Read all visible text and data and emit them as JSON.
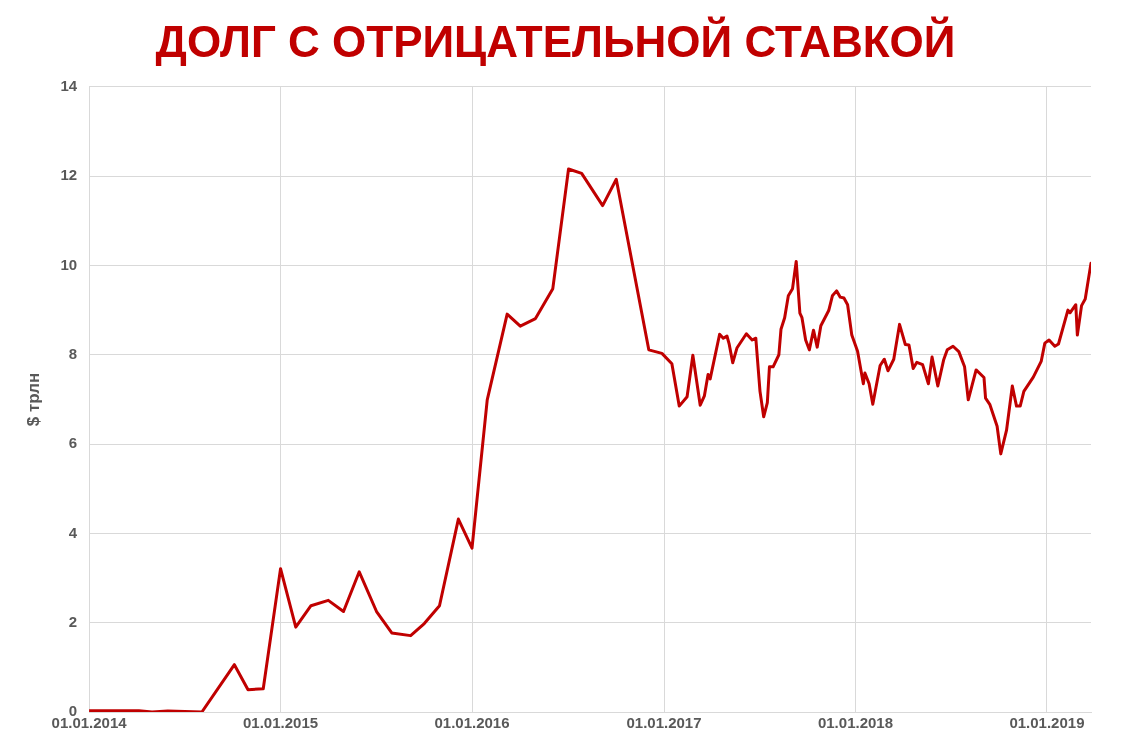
{
  "chart_data": {
    "type": "line",
    "title": "ДОЛГ С ОТРИЦАТЕЛЬНОЙ СТАВКОЙ",
    "ylabel": "$ трлн",
    "x": [
      "2014-01-01",
      "2014-04-06",
      "2014-05-01",
      "2014-05-31",
      "2014-08-04",
      "2014-10-05",
      "2014-10-31",
      "2014-11-29",
      "2015-01-01",
      "2015-01-30",
      "2015-02-28",
      "2015-04-02",
      "2015-05-01",
      "2015-05-31",
      "2015-07-03",
      "2015-08-01",
      "2015-09-06",
      "2015-10-02",
      "2015-10-31",
      "2015-12-06",
      "2016-01-01",
      "2016-01-30",
      "2016-03-08",
      "2016-04-02",
      "2016-05-01",
      "2016-06-03",
      "2016-07-03",
      "2016-07-28",
      "2016-09-06",
      "2016-10-02",
      "2016-12-03",
      "2016-12-28",
      "2017-01-16",
      "2017-01-30",
      "2017-02-14",
      "2017-02-25",
      "2017-03-11",
      "2017-03-19",
      "2017-03-26",
      "2017-03-30",
      "2017-04-17",
      "2017-04-24",
      "2017-05-01",
      "2017-05-05",
      "2017-05-12",
      "2017-05-20",
      "2017-06-07",
      "2017-06-18",
      "2017-06-25",
      "2017-07-03",
      "2017-07-10",
      "2017-07-17",
      "2017-07-21",
      "2017-07-28",
      "2017-08-08",
      "2017-08-12",
      "2017-08-19",
      "2017-08-26",
      "2017-09-03",
      "2017-09-10",
      "2017-09-17",
      "2017-09-21",
      "2017-09-28",
      "2017-10-05",
      "2017-10-13",
      "2017-10-20",
      "2017-10-27",
      "2017-11-11",
      "2017-11-18",
      "2017-11-26",
      "2017-12-03",
      "2017-12-10",
      "2017-12-17",
      "2017-12-25",
      "2018-01-05",
      "2018-01-16",
      "2018-01-19",
      "2018-01-27",
      "2018-02-03",
      "2018-02-17",
      "2018-02-25",
      "2018-03-04",
      "2018-03-15",
      "2018-03-26",
      "2018-04-06",
      "2018-04-13",
      "2018-04-21",
      "2018-04-28",
      "2018-05-09",
      "2018-05-20",
      "2018-05-27",
      "2018-06-07",
      "2018-06-18",
      "2018-06-25",
      "2018-07-06",
      "2018-07-17",
      "2018-07-28",
      "2018-08-04",
      "2018-08-19",
      "2018-09-03",
      "2018-09-06",
      "2018-09-14",
      "2018-09-28",
      "2018-10-05",
      "2018-10-16",
      "2018-10-27",
      "2018-11-04",
      "2018-11-11",
      "2018-11-18",
      "2018-12-06",
      "2018-12-21",
      "2018-12-28",
      "2019-01-05",
      "2019-01-16",
      "2019-01-23",
      "2019-02-10",
      "2019-02-14",
      "2019-02-25",
      "2019-02-28",
      "2019-03-08",
      "2019-03-15",
      "2019-03-26"
    ],
    "series": [
      {
        "color": "#c00000",
        "values": [
          0.03,
          0.03,
          0,
          0.02,
          0,
          1.06,
          0.5,
          0.52,
          3.21,
          1.9,
          2.38,
          2.5,
          2.25,
          3.14,
          2.25,
          1.77,
          1.71,
          1.98,
          2.38,
          4.32,
          3.67,
          6.99,
          8.91,
          8.64,
          8.81,
          9.48,
          12.16,
          12.06,
          11.34,
          11.93,
          8.11,
          8.03,
          7.8,
          6.85,
          7.06,
          7.99,
          6.87,
          7.08,
          7.56,
          7.46,
          8.46,
          8.37,
          8.42,
          8.25,
          7.82,
          8.15,
          8.47,
          8.33,
          8.37,
          7.18,
          6.61,
          6.93,
          7.73,
          7.73,
          8.0,
          8.57,
          8.83,
          9.32,
          9.48,
          10.09,
          8.93,
          8.83,
          8.33,
          8.11,
          8.55,
          8.17,
          8.65,
          8.99,
          9.32,
          9.43,
          9.29,
          9.27,
          9.12,
          8.44,
          8.08,
          7.35,
          7.59,
          7.35,
          6.89,
          7.76,
          7.9,
          7.64,
          7.9,
          8.68,
          8.23,
          8.22,
          7.69,
          7.83,
          7.78,
          7.35,
          7.95,
          7.3,
          7.88,
          8.11,
          8.19,
          8.07,
          7.73,
          6.99,
          7.66,
          7.49,
          7.03,
          6.89,
          6.4,
          5.78,
          6.31,
          7.3,
          6.85,
          6.85,
          7.18,
          7.5,
          7.85,
          8.26,
          8.33,
          8.19,
          8.24,
          9.0,
          8.94,
          9.12,
          8.44,
          9.1,
          9.25,
          10.05
        ]
      }
    ],
    "xlim": [
      "2014-01-01",
      "2019-03-26"
    ],
    "xticks": [
      {
        "value": "2014-01-01",
        "label": "01.01.2014"
      },
      {
        "value": "2015-01-01",
        "label": "01.01.2015"
      },
      {
        "value": "2016-01-01",
        "label": "01.01.2016"
      },
      {
        "value": "2017-01-01",
        "label": "01.01.2017"
      },
      {
        "value": "2018-01-01",
        "label": "01.01.2018"
      },
      {
        "value": "2019-01-01",
        "label": "01.01.2019"
      }
    ],
    "ylim": [
      0,
      14
    ],
    "yticks": [
      0,
      2,
      4,
      6,
      8,
      10,
      12,
      14
    ],
    "grid": true,
    "marker": "none",
    "line_style": "solid"
  }
}
